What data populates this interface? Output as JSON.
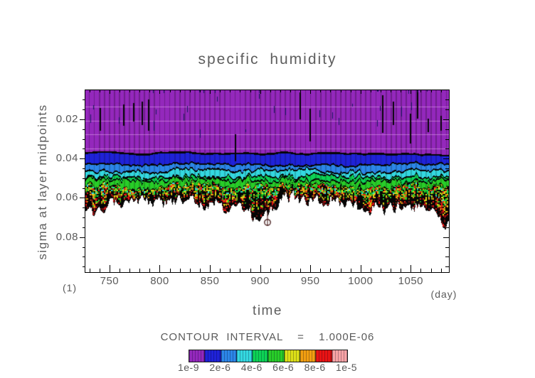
{
  "title": "specific humidity",
  "axes": {
    "ylabel": "sigma at layer midpoints",
    "xlabel": "time",
    "x_left_label": "(1)",
    "x_unit_label": "(day)",
    "x_tick_labels": [
      "750",
      "800",
      "850",
      "900",
      "950",
      "1000",
      "1050"
    ],
    "y_tick_labels": [
      "0.02",
      "0.04",
      "0.06",
      "0.08"
    ]
  },
  "legend": {
    "contour_interval_label": "CONTOUR INTERVAL  =  1.000E-06",
    "level_labels": [
      "1e-9",
      "2e-6",
      "4e-6",
      "6e-6",
      "8e-6",
      "1e-5"
    ],
    "label_band_positions": [
      0,
      2,
      4,
      6,
      8,
      10
    ]
  },
  "chart_data": {
    "type": "filled-contour",
    "title": "specific humidity",
    "xlabel": "time",
    "ylabel": "sigma at layer midpoints",
    "x_axis": {
      "unit": "day",
      "range": [
        726,
        1088
      ],
      "ticks": [
        750,
        800,
        850,
        900,
        950,
        1000,
        1050
      ],
      "minor_step": 10
    },
    "y_axis": {
      "unit": "sigma",
      "range": [
        0.0052,
        0.0978
      ],
      "ticks": [
        0.02,
        0.04,
        0.06,
        0.08
      ],
      "minor_step": 0.005,
      "increases_downward": true
    },
    "contour_interval": 1e-06,
    "contour_levels": [
      1e-09,
      1e-06,
      2e-06,
      3e-06,
      4e-06,
      5e-06,
      6e-06,
      7e-06,
      8e-06,
      9e-06,
      1e-05
    ],
    "palette": [
      "#9428bc",
      "#1f22d8",
      "#2c86e8",
      "#34d8e0",
      "#0dd255",
      "#28cd28",
      "#dcdf17",
      "#f29e10",
      "#ea1313",
      "#f7a3a5"
    ],
    "field_summary": {
      "description": "Dry purple layer (q<1e-9) from sigma ~0.005 down to ~0.037; humidity increases sharply below with noisy day-to-day contour bands; q exceeds 1e-5 (white) below sigma ~0.058-0.075",
      "mean_boundary_sigma": {
        "1e-9": 0.037,
        "1e-6": 0.043,
        "2e-6": 0.046,
        "3e-6": 0.049,
        "4e-6": 0.051,
        "5e-6": 0.054,
        "white_region_top_mean": 0.0623,
        "white_region_top_min": 0.058,
        "white_region_top_max": 0.075
      }
    }
  }
}
